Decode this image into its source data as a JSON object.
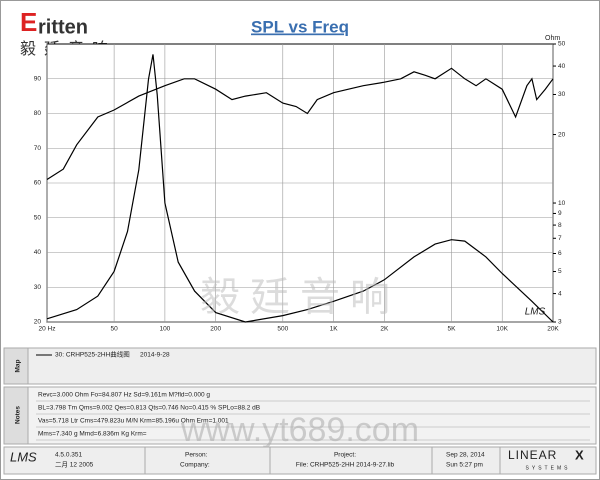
{
  "header": {
    "logo_letter": "E",
    "logo": "ritten",
    "logo_sub": "毅廷音响"
  },
  "chart_data": {
    "type": "line",
    "title": "SPL vs Freq",
    "y2_label": "Ohm",
    "annotation": "LMS",
    "watermark": "毅廷音响",
    "xlim": [
      20,
      20000
    ],
    "log_x": true,
    "xticks": [
      {
        "value": 20,
        "label": "20 Hz"
      },
      50,
      100,
      200,
      500,
      {
        "value": 1000,
        "label": "1K"
      },
      {
        "value": 2000,
        "label": "2K"
      },
      {
        "value": 5000,
        "label": "5K"
      },
      {
        "value": 10000,
        "label": "10K"
      },
      {
        "value": 20000,
        "label": "20K"
      }
    ],
    "ylim": [
      20,
      100
    ],
    "yticks": [
      20,
      30,
      40,
      50,
      60,
      70,
      80,
      90
    ],
    "y2lim": [
      3,
      50
    ],
    "log_y2": true,
    "y2ticks": [
      3,
      4,
      5,
      6,
      7,
      8,
      9,
      10,
      20,
      30,
      40,
      50
    ],
    "grid": true,
    "series": [
      {
        "color": "#000000",
        "x": [
          20,
          25,
          30,
          40,
          50,
          70,
          100,
          130,
          150,
          200,
          250,
          300,
          400,
          500,
          600,
          700,
          800,
          1000,
          1500,
          2000,
          2500,
          3000,
          3500,
          4000,
          5000,
          6000,
          7000,
          8000,
          10000,
          12000,
          14000,
          15000,
          16000,
          18000,
          20000
        ],
        "values": [
          61,
          64,
          71,
          79,
          81,
          85,
          88,
          90,
          90,
          87,
          84,
          85,
          86,
          83,
          82,
          80,
          84,
          86,
          88,
          89,
          90,
          92,
          91,
          90,
          93,
          90,
          88,
          90,
          87,
          79,
          88,
          90,
          84,
          87,
          90
        ]
      },
      {
        "color": "#000000",
        "axis": "y2",
        "x": [
          20,
          30,
          40,
          50,
          60,
          70,
          80,
          85,
          90,
          100,
          120,
          150,
          200,
          300,
          500,
          700,
          1000,
          1500,
          2000,
          3000,
          4000,
          5000,
          6000,
          8000,
          10000,
          15000,
          20000
        ],
        "values": [
          3.1,
          3.4,
          3.9,
          5.0,
          7.5,
          14,
          35,
          45,
          30,
          10,
          5.5,
          4.1,
          3.3,
          3.0,
          3.2,
          3.4,
          3.7,
          4.1,
          4.6,
          5.8,
          6.6,
          6.9,
          6.8,
          5.8,
          4.9,
          3.7,
          3.0
        ]
      }
    ]
  },
  "map_panel": {
    "label": "Map",
    "entry": "30: CRHP525-2HH曲线图",
    "date": "2014-9-28"
  },
  "notes_panel": {
    "label": "Notes",
    "lines": [
      "Revc=3.000 Ohm  Fo=84.807 Hz  Sd=9.161m M?fld=0.000 g",
      "BL=3.798 Tm  Qms=9.002  Qes=0.813  Qts=0.746  No=0.415 %  SPLo=88.2 dB",
      "Vas=5.718 Ltr  Cms=479.823u M/N  Krm=85.196u Ohm  Erm=1.001",
      "Mms=7.340 g  Mmd=6.836m Kg  Krm="
    ]
  },
  "footer": {
    "logo": "LMS",
    "version": "4.5.0.351",
    "build": "二月 12 2005",
    "person": "Person:",
    "company": "Company:",
    "project": "Project:",
    "file": "File: CRHP525-2HH  2014-9-27.lib",
    "date": "Sep 28, 2014",
    "time": "Sun  5:27 pm",
    "brand": "LINEAR",
    "brand_x": "X",
    "brand_sub": "SYSTEMS"
  },
  "watermark": "www.yt689.com"
}
